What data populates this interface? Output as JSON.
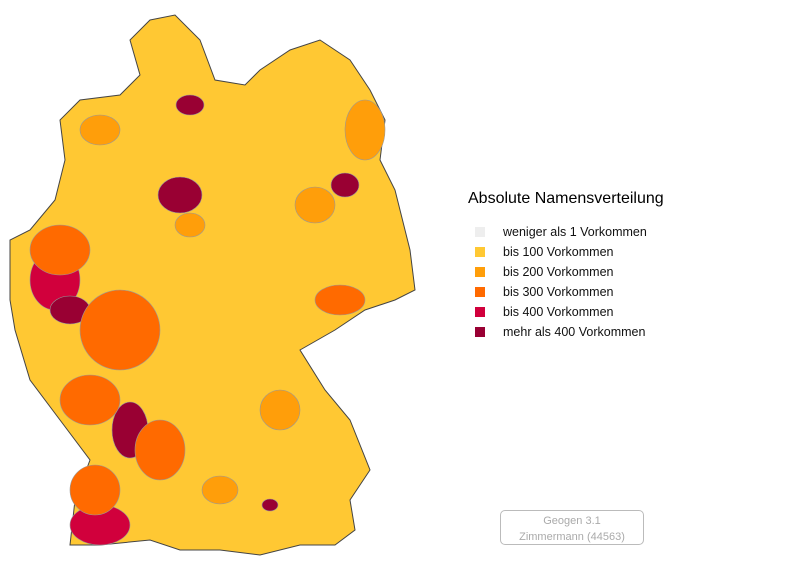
{
  "legend": {
    "title": "Absolute Namensverteilung",
    "items": [
      {
        "label": "weniger als 1 Vorkommen",
        "color": "#eeeeee"
      },
      {
        "label": "bis 100 Vorkommen",
        "color": "#ffc833"
      },
      {
        "label": "bis 200 Vorkommen",
        "color": "#ff9e0a"
      },
      {
        "label": "bis 300 Vorkommen",
        "color": "#ff6a00"
      },
      {
        "label": "bis 400 Vorkommen",
        "color": "#d1003c"
      },
      {
        "label": "mehr als 400 Vorkommen",
        "color": "#990033"
      }
    ]
  },
  "credit": {
    "line1": "Geogen 3.1",
    "line2": "Zimmermann (44563)"
  }
}
